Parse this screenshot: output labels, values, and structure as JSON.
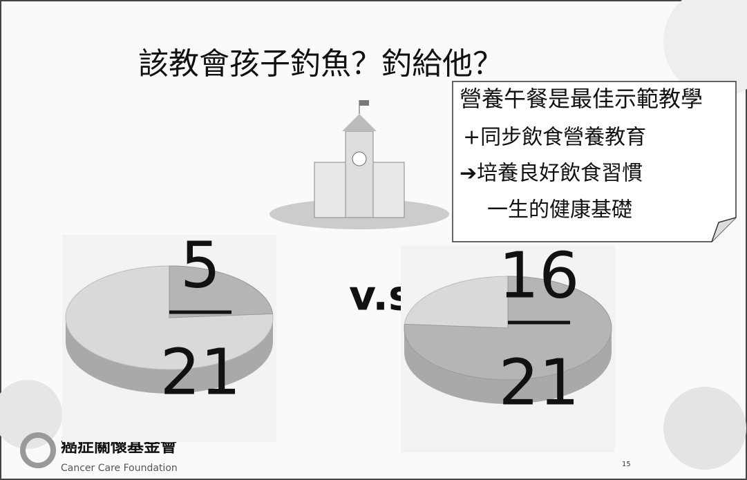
{
  "title": "該教會孩子釣魚？釣給他？",
  "callout": {
    "lines": [
      "營養午餐是最佳示範教學",
      "+同步飲食營養教育",
      "➔培養良好飲食習慣",
      "一生的健康基礎"
    ]
  },
  "versus": "v.s.",
  "pies": [
    {
      "numerator": 5,
      "denominator": 21
    },
    {
      "numerator": 16,
      "denominator": 21
    }
  ],
  "logo": {
    "name": "癌症關懷基金會",
    "english": "Cancer Care Foundation"
  },
  "page_number": 15
}
